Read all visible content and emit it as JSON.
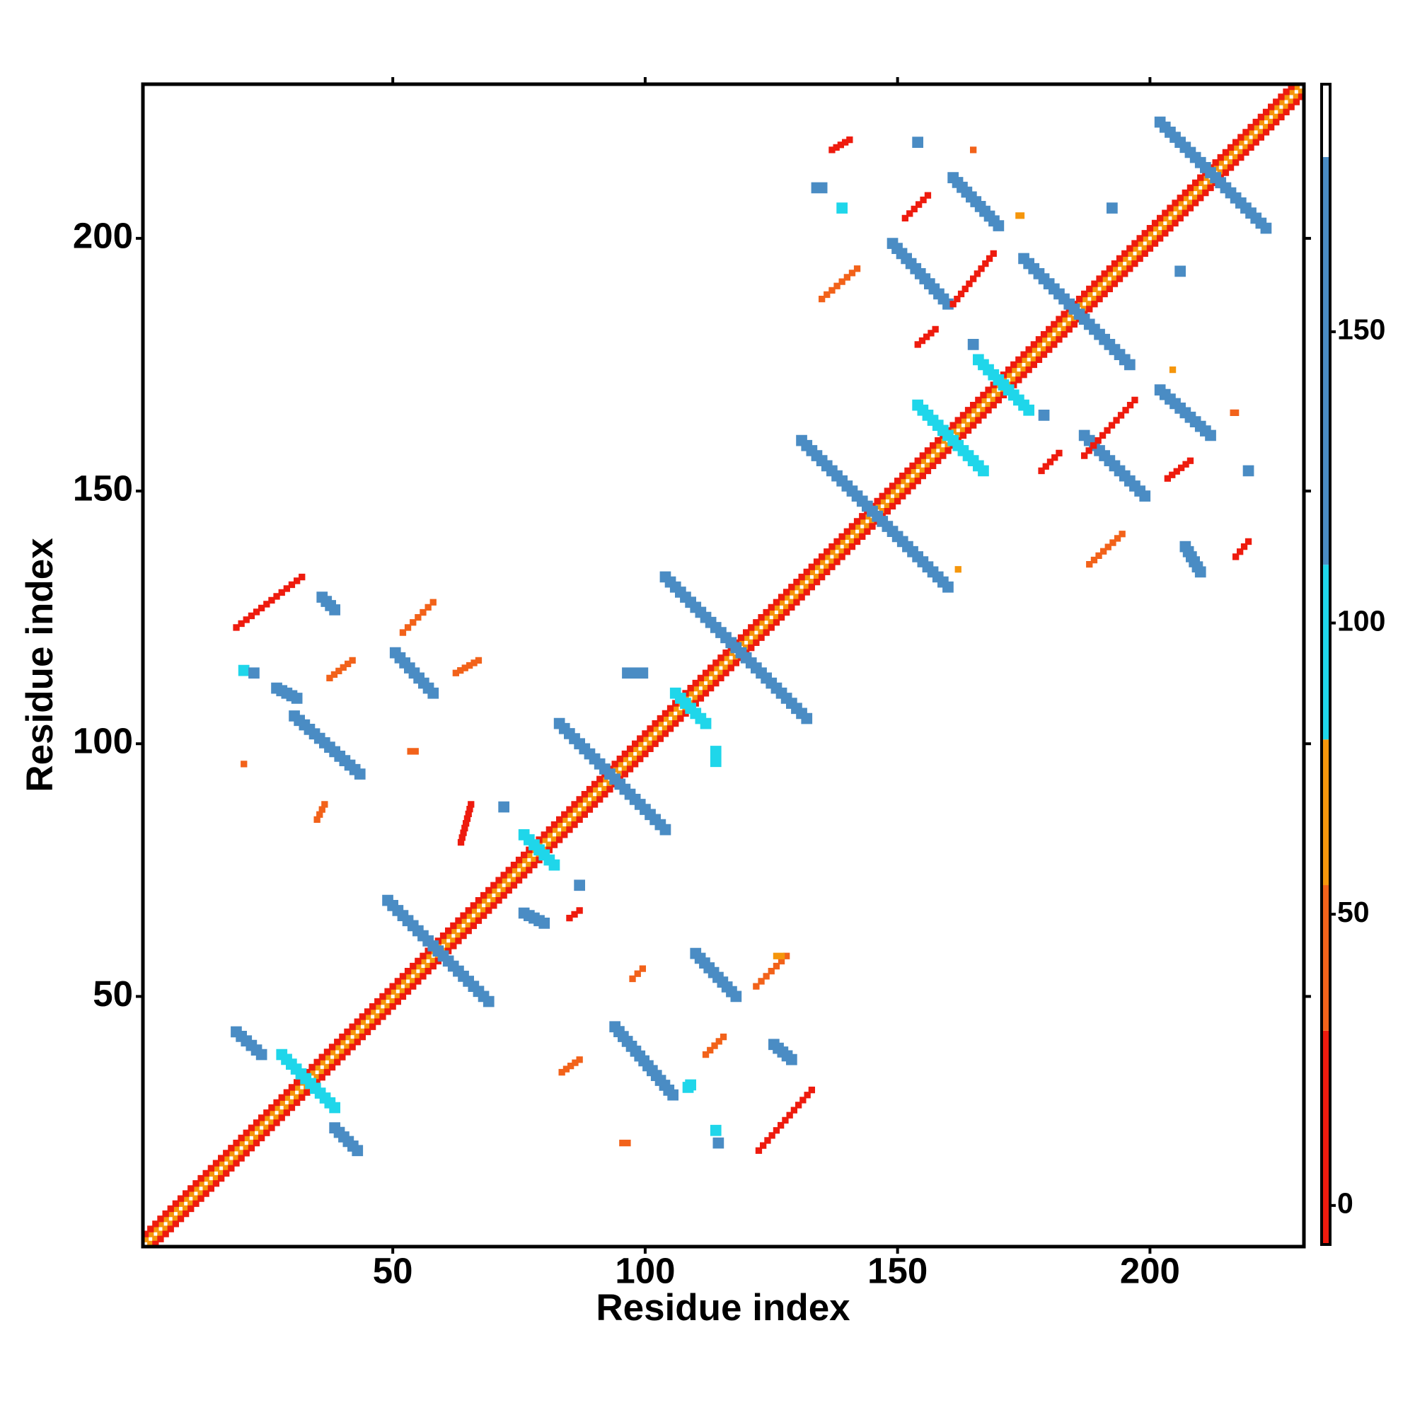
{
  "chart_data": {
    "type": "contact_map",
    "xlabel": "Residue index",
    "ylabel": "Residue index",
    "xlim": [
      0.5,
      230.5
    ],
    "ylim": [
      0.5,
      230.5
    ],
    "xticks": [
      50,
      100,
      150,
      200
    ],
    "yticks": [
      50,
      100,
      150,
      200
    ],
    "colorbar": {
      "clim": [
        -6.7,
        192.5
      ],
      "ticks": [
        0,
        50,
        100,
        150
      ],
      "bounds": [
        -6.7,
        30,
        55,
        80,
        110,
        180,
        192.5
      ],
      "colors": [
        "#ee1b0e",
        "#f2621a",
        "#f5960c",
        "#1fd6ea",
        "#4a8cc4",
        "#ffffff"
      ]
    },
    "segments": [
      [
        1,
        2,
        229,
        230,
        70
      ],
      [
        2,
        1,
        230,
        229,
        70
      ],
      [
        1,
        3,
        228,
        230,
        10
      ],
      [
        3,
        1,
        230,
        228,
        10
      ],
      [
        202,
        223,
        223,
        202,
        140
      ],
      [
        175,
        196,
        196,
        175,
        140
      ],
      [
        131,
        160,
        160,
        131,
        140
      ],
      [
        104,
        133,
        132,
        105,
        140
      ],
      [
        83,
        104,
        104,
        83,
        140
      ],
      [
        49,
        69,
        69,
        49,
        140
      ],
      [
        166,
        176,
        176,
        166,
        95
      ],
      [
        154,
        167,
        167,
        154,
        95
      ],
      [
        28,
        38.5,
        38.5,
        28,
        95
      ],
      [
        106,
        110,
        112,
        104,
        95
      ],
      [
        76,
        82,
        82,
        76,
        95
      ],
      [
        149,
        199,
        160,
        187,
        140
      ],
      [
        187,
        161,
        199,
        149,
        140
      ],
      [
        161,
        212,
        170,
        202.5,
        140
      ],
      [
        202,
        170,
        212,
        161,
        140
      ],
      [
        50.5,
        118,
        58,
        110,
        140
      ],
      [
        110,
        58.5,
        118,
        50,
        140
      ],
      [
        30.5,
        105.5,
        43.5,
        94,
        140
      ],
      [
        94,
        44,
        105.5,
        30.5,
        140
      ],
      [
        19,
        43,
        24,
        38.5,
        140
      ],
      [
        38.5,
        24,
        43,
        19.5,
        140
      ],
      [
        19,
        123,
        32,
        133,
        25
      ],
      [
        122.5,
        19.5,
        133,
        31.5,
        25
      ],
      [
        52,
        122,
        58,
        128,
        45
      ],
      [
        122,
        52,
        128,
        58,
        45
      ],
      [
        161,
        187,
        169,
        197,
        10
      ],
      [
        187,
        157,
        197,
        168,
        10
      ],
      [
        151.5,
        204,
        156,
        208.5,
        25
      ],
      [
        135,
        188,
        142,
        194,
        45
      ],
      [
        203.5,
        152.5,
        208,
        156,
        10
      ],
      [
        188,
        135.5,
        194.5,
        141.5,
        45
      ],
      [
        217,
        137,
        219.5,
        140,
        10
      ],
      [
        62.5,
        114,
        67,
        116.5,
        45
      ],
      [
        37.5,
        113,
        42,
        116.5,
        45
      ],
      [
        63.5,
        80.5,
        65.5,
        88,
        10
      ],
      [
        137,
        217.5,
        140.5,
        219.5,
        10
      ],
      [
        154,
        179,
        157.5,
        182,
        10
      ],
      [
        178.5,
        154,
        182,
        157.5,
        10
      ],
      [
        83.5,
        35,
        87,
        37.5,
        45
      ],
      [
        112,
        38.5,
        115.5,
        42,
        45
      ],
      [
        85,
        65.5,
        87,
        67,
        10
      ],
      [
        97.5,
        53.5,
        99.5,
        55.5,
        45
      ],
      [
        35,
        85,
        36.5,
        88,
        45
      ],
      [
        20.5,
        96,
        20.5,
        96,
        45
      ],
      [
        95.5,
        21,
        96.5,
        21,
        45
      ],
      [
        53.5,
        98.5,
        54.5,
        98.5,
        45
      ],
      [
        154,
        219,
        154,
        219,
        140
      ],
      [
        139,
        206,
        139,
        206,
        95
      ],
      [
        134,
        210,
        135,
        210,
        140
      ],
      [
        165,
        179,
        165,
        179,
        140
      ],
      [
        206,
        193.5,
        206,
        193.5,
        140
      ],
      [
        192.5,
        206,
        192.5,
        206,
        140
      ],
      [
        219.5,
        154,
        219.5,
        154,
        140
      ],
      [
        207,
        139,
        210,
        134,
        140
      ],
      [
        179,
        165,
        179,
        165,
        140
      ],
      [
        165,
        217.5,
        165,
        217.5,
        45
      ],
      [
        174,
        204.5,
        174.5,
        204.5,
        70
      ],
      [
        204.5,
        174,
        204.5,
        174,
        70
      ],
      [
        216.5,
        165.5,
        217,
        165.5,
        45
      ],
      [
        162,
        134.5,
        162,
        134.5,
        70
      ],
      [
        20.5,
        114.5,
        20.5,
        114.5,
        95
      ],
      [
        22.5,
        114,
        22.5,
        114,
        140
      ],
      [
        27,
        111,
        31,
        109,
        140
      ],
      [
        36,
        129,
        38.5,
        126.5,
        140
      ],
      [
        96.5,
        114,
        99.5,
        114,
        140
      ],
      [
        114,
        98.5,
        114,
        96.5,
        95
      ],
      [
        72,
        87.5,
        72,
        87.5,
        140
      ],
      [
        87,
        72,
        87,
        72,
        140
      ],
      [
        76,
        66.5,
        80,
        64.5,
        140
      ],
      [
        125.5,
        40.5,
        129,
        37.5,
        140
      ],
      [
        114,
        23.5,
        114,
        23.5,
        95
      ],
      [
        114.5,
        21,
        114.5,
        21,
        140
      ],
      [
        108.5,
        32,
        109,
        32.5,
        95
      ],
      [
        126,
        58,
        127,
        58,
        70
      ]
    ]
  }
}
